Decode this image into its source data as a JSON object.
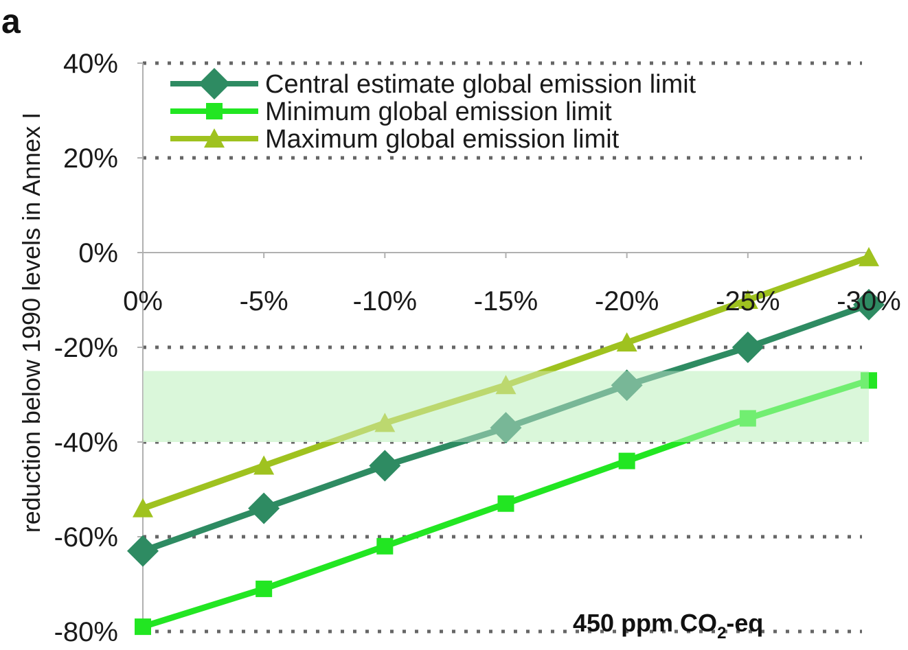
{
  "panel_label": "a",
  "annotation": {
    "main": "450 ppm CO",
    "sub": "2",
    "tail": "-eq"
  },
  "colors": {
    "central": "#2e8b62",
    "minimum": "#22e622",
    "maximum": "#9fc21f",
    "band": "#c9f5c9",
    "grid": "#666666",
    "axis": "#b0b0b0"
  },
  "chart_data": {
    "type": "line",
    "title": "",
    "xlabel": "",
    "ylabel": "reduction below 1990 levels in Annex I",
    "x": [
      0,
      -5,
      -10,
      -15,
      -20,
      -25,
      -30
    ],
    "x_tick_labels": [
      "0%",
      "-5%",
      "-10%",
      "-15%",
      "-20%",
      "-25%",
      "-30%"
    ],
    "y_tick_labels": [
      "40%",
      "20%",
      "0%",
      "-20%",
      "-40%",
      "-60%",
      "-80%"
    ],
    "y_ticks": [
      40,
      20,
      0,
      -20,
      -40,
      -60,
      -80
    ],
    "ylim": [
      -80,
      40
    ],
    "xlim": [
      0,
      -30
    ],
    "grid": "horizontal dotted",
    "legend_position": "top-left",
    "shaded_band": {
      "y_from": -25,
      "y_to": -40
    },
    "series": [
      {
        "name": "Central estimate global emission limit",
        "marker": "diamond",
        "color_key": "central",
        "values": [
          -63,
          -54,
          -45,
          -37,
          -28,
          -20,
          -11
        ]
      },
      {
        "name": "Minimum global emission limit",
        "marker": "square",
        "color_key": "minimum",
        "values": [
          -79,
          -71,
          -62,
          -53,
          -44,
          -35,
          -27
        ]
      },
      {
        "name": "Maximum global emission limit",
        "marker": "triangle",
        "color_key": "maximum",
        "values": [
          -54,
          -45,
          -36,
          -28,
          -19,
          -10,
          -1
        ]
      }
    ]
  }
}
